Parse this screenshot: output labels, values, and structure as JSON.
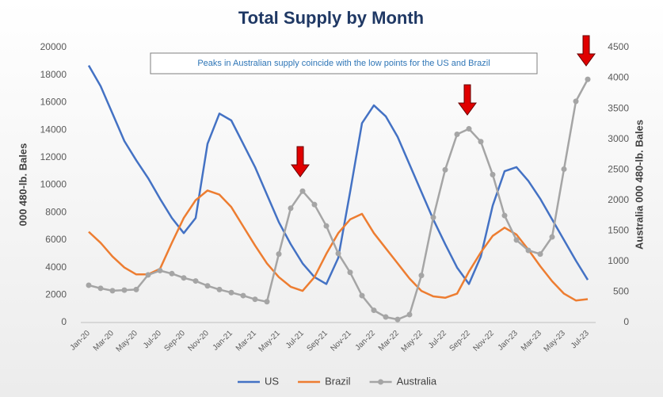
{
  "chart_data": {
    "type": "line",
    "title": "Total Supply by Month",
    "annotation": "Peaks in Australian supply coincide with the low points for the US and Brazil",
    "ylabel": "000 480-lb. Bales",
    "y2label": "Australia 000 480-lb. Bales",
    "categories": [
      "Jan-20",
      null,
      "Mar-20",
      null,
      "May-20",
      null,
      "Jul-20",
      null,
      "Sep-20",
      null,
      "Nov-20",
      null,
      "Jan-21",
      null,
      "Mar-21",
      null,
      "May-21",
      null,
      "Jul-21",
      null,
      "Sep-21",
      null,
      "Nov-21",
      null,
      "Jan-22",
      null,
      "Mar-22",
      null,
      "May-22",
      null,
      "Jul-22",
      null,
      "Sep-22",
      null,
      "Nov-22",
      null,
      "Jan-23",
      null,
      "Mar-23",
      null,
      "May-23",
      null,
      "Jul-23"
    ],
    "series": [
      {
        "name": "US",
        "color": "#4472c4",
        "values": [
          18700,
          17200,
          15200,
          13200,
          11800,
          10500,
          9000,
          7600,
          6500,
          7600,
          13000,
          15200,
          14700,
          13000,
          11300,
          9300,
          7300,
          5700,
          4300,
          3300,
          2800,
          4700,
          9500,
          14500,
          15800,
          15000,
          13500,
          11500,
          9500,
          7500,
          5700,
          4000,
          2800,
          4800,
          8500,
          11000,
          11300,
          10300,
          9000,
          7500,
          6000,
          4500,
          3100
        ]
      },
      {
        "name": "Brazil",
        "color": "#ed7d31",
        "values": [
          6600,
          5800,
          4800,
          4000,
          3500,
          3500,
          3900,
          5800,
          7600,
          8900,
          9600,
          9300,
          8400,
          7000,
          5600,
          4300,
          3300,
          2600,
          2300,
          3300,
          5000,
          6500,
          7500,
          7900,
          6500,
          5400,
          4300,
          3200,
          2300,
          1900,
          1800,
          2100,
          3700,
          5100,
          6300,
          6900,
          6400,
          5300,
          4100,
          3000,
          2100,
          1600,
          1700
        ]
      },
      {
        "name": "Australia",
        "color": "#a5a5a5",
        "axis": "y2",
        "marker": true,
        "values": [
          610,
          560,
          520,
          530,
          540,
          780,
          850,
          800,
          730,
          680,
          600,
          540,
          490,
          440,
          380,
          340,
          1120,
          1870,
          2150,
          1930,
          1580,
          1130,
          820,
          440,
          200,
          90,
          50,
          130,
          770,
          1720,
          2500,
          3080,
          3170,
          2960,
          2420,
          1750,
          1350,
          1180,
          1120,
          1400,
          2510,
          3620,
          3980
        ]
      }
    ],
    "ylim": [
      0,
      20000
    ],
    "yticks": [
      0,
      2000,
      4000,
      6000,
      8000,
      10000,
      12000,
      14000,
      16000,
      18000,
      20000
    ],
    "y2lim": [
      0,
      4500
    ],
    "y2ticks": [
      0,
      500,
      1000,
      1500,
      2000,
      2500,
      3000,
      3500,
      4000,
      4500
    ],
    "grid": false,
    "legend": "bottom"
  }
}
